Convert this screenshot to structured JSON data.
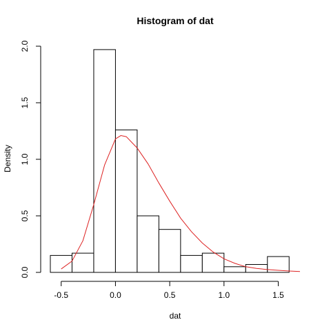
{
  "chart_data": {
    "type": "bar",
    "title": "Histogram of dat",
    "xlabel": "dat",
    "ylabel": "Density",
    "xlim": [
      -0.6,
      1.7
    ],
    "ylim": [
      0,
      2.0
    ],
    "x_ticks": [
      -0.5,
      0.0,
      0.5,
      1.0,
      1.5
    ],
    "x_tick_labels": [
      "-0.5",
      "0.0",
      "0.5",
      "1.0",
      "1.5"
    ],
    "y_ticks": [
      0.0,
      0.5,
      1.0,
      1.5,
      2.0
    ],
    "y_tick_labels": [
      "0.0",
      "0.5",
      "1.0",
      "1.5",
      "2.0"
    ],
    "bins": [
      {
        "x0": -0.6,
        "x1": -0.4,
        "value": 0.15
      },
      {
        "x0": -0.4,
        "x1": -0.2,
        "value": 0.17
      },
      {
        "x0": -0.2,
        "x1": 0.0,
        "value": 1.97
      },
      {
        "x0": 0.0,
        "x1": 0.2,
        "value": 1.26
      },
      {
        "x0": 0.2,
        "x1": 0.4,
        "value": 0.5
      },
      {
        "x0": 0.4,
        "x1": 0.6,
        "value": 0.38
      },
      {
        "x0": 0.6,
        "x1": 0.8,
        "value": 0.15
      },
      {
        "x0": 0.8,
        "x1": 1.0,
        "value": 0.17
      },
      {
        "x0": 1.0,
        "x1": 1.2,
        "value": 0.05
      },
      {
        "x0": 1.2,
        "x1": 1.4,
        "value": 0.07
      },
      {
        "x0": 1.4,
        "x1": 1.6,
        "value": 0.14
      }
    ],
    "density_curve": {
      "color": "#dd2222",
      "x": [
        -0.5,
        -0.4,
        -0.3,
        -0.2,
        -0.1,
        0.0,
        0.05,
        0.1,
        0.2,
        0.3,
        0.4,
        0.5,
        0.6,
        0.7,
        0.8,
        0.9,
        1.0,
        1.1,
        1.2,
        1.3,
        1.4,
        1.5,
        1.6,
        1.7
      ],
      "y": [
        0.03,
        0.1,
        0.28,
        0.6,
        0.95,
        1.18,
        1.21,
        1.2,
        1.1,
        0.96,
        0.79,
        0.63,
        0.48,
        0.36,
        0.26,
        0.18,
        0.12,
        0.08,
        0.05,
        0.035,
        0.025,
        0.018,
        0.012,
        0.008
      ]
    },
    "grid": false,
    "legend": "none"
  }
}
